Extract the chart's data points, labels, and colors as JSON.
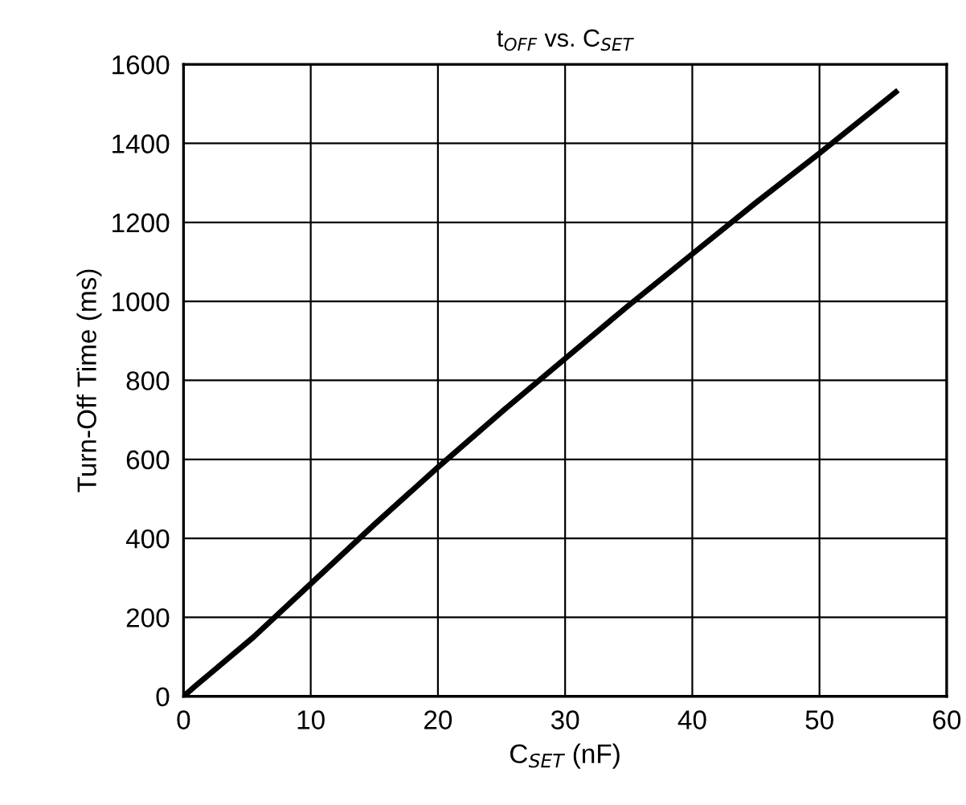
{
  "chart_data": {
    "type": "line",
    "title": "t$_{OFF}$ vs. C$_{SET}$",
    "xlabel": "C$_{SET}$ (nF)",
    "ylabel": "Turn-Off Time (ms)",
    "x": [
      0,
      1,
      5.5,
      10,
      15,
      20,
      25,
      30,
      35,
      40,
      45,
      50,
      56
    ],
    "series": [
      {
        "color": "#000000",
        "values": [
          0,
          28,
          150,
          285,
          435,
          580,
          720,
          855,
          990,
          1120,
          1250,
          1375,
          1530
        ]
      }
    ],
    "xlim": [
      0,
      60
    ],
    "xticks": [
      0,
      10,
      20,
      30,
      40,
      50,
      60
    ],
    "ylim": [
      0,
      1600
    ],
    "yticks": [
      0,
      200,
      400,
      600,
      800,
      1000,
      1200,
      1400,
      1600
    ],
    "grid": true,
    "line_style": "solid",
    "marker": "none"
  }
}
